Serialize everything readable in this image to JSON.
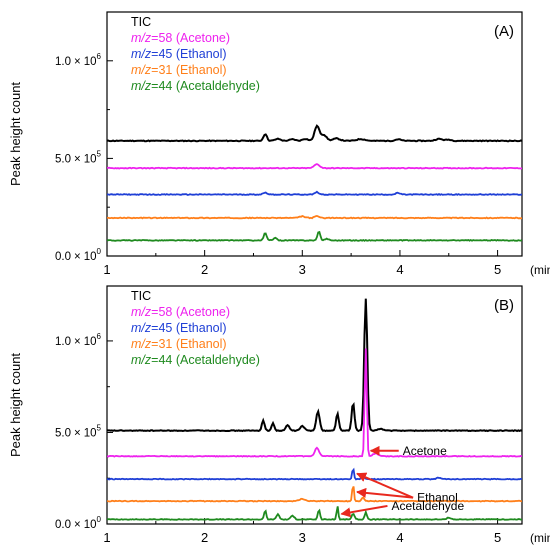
{
  "colors": {
    "TIC": "#000000",
    "acetone": "#ee22ee",
    "ethanol45": "#1f3fd6",
    "ethanol31": "#ff7f1a",
    "acetaldehyde": "#1f8a1f",
    "arrow": "#e8281e"
  },
  "chart_data": [
    {
      "type": "line",
      "panel_label": "(A)",
      "xlabel": "(min)",
      "ylabel": "Peak height count",
      "xlim": [
        1.0,
        5.25
      ],
      "ylim": [
        0,
        1250000
      ],
      "x_ticks": [
        "1",
        "2",
        "3",
        "4",
        "5"
      ],
      "y_ticks": [
        {
          "mantissa": "0.0",
          "times": "×",
          "base": "10",
          "exp": "0",
          "value": 0
        },
        {
          "mantissa": "5.0",
          "times": "×",
          "base": "10",
          "exp": "5",
          "value": 500000
        },
        {
          "mantissa": "1.0",
          "times": "×",
          "base": "10",
          "exp": "6",
          "value": 1000000
        }
      ],
      "legend": [
        {
          "mz_prefix": "m/z",
          "label": "=58 (Acetone)",
          "color_key": "acetone"
        },
        {
          "mz_prefix": "m/z",
          "label": "=45 (Ethanol)",
          "color_key": "ethanol45"
        },
        {
          "mz_prefix": "m/z",
          "label": "=31 (Ethanol)",
          "color_key": "ethanol31"
        },
        {
          "mz_prefix": "m/z",
          "label": "=44 (Acetaldehyde)",
          "color_key": "acetaldehyde"
        }
      ],
      "legend_title": "TIC",
      "series": [
        {
          "key": "TIC",
          "color_key": "TIC",
          "baseline": 590000,
          "peaks": [
            [
              2.62,
              35000,
              0.025
            ],
            [
              2.75,
              10000,
              0.04
            ],
            [
              2.9,
              8000,
              0.04
            ],
            [
              3.03,
              10000,
              0.04
            ],
            [
              3.15,
              75000,
              0.035
            ],
            [
              3.22,
              30000,
              0.04
            ],
            [
              3.35,
              12000,
              0.05
            ],
            [
              3.6,
              9000,
              0.06
            ],
            [
              3.98,
              8000,
              0.04
            ],
            [
              4.4,
              10000,
              0.05
            ],
            [
              4.5,
              6000,
              0.04
            ]
          ]
        },
        {
          "key": "acetone",
          "color_key": "acetone",
          "baseline": 450000,
          "peaks": [
            [
              3.15,
              20000,
              0.04
            ]
          ]
        },
        {
          "key": "ethanol45",
          "color_key": "ethanol45",
          "baseline": 315000,
          "peaks": [
            [
              2.62,
              10000,
              0.03
            ],
            [
              3.15,
              12000,
              0.03
            ],
            [
              3.98,
              8000,
              0.03
            ]
          ]
        },
        {
          "key": "ethanol31",
          "color_key": "ethanol31",
          "baseline": 195000,
          "peaks": [
            [
              3.0,
              8000,
              0.04
            ],
            [
              3.15,
              10000,
              0.03
            ]
          ]
        },
        {
          "key": "acetaldehyde",
          "color_key": "acetaldehyde",
          "baseline": 80000,
          "peaks": [
            [
              2.62,
              38000,
              0.02
            ],
            [
              2.72,
              12000,
              0.025
            ],
            [
              3.17,
              45000,
              0.02
            ],
            [
              3.25,
              8000,
              0.03
            ]
          ]
        }
      ]
    },
    {
      "type": "line",
      "panel_label": "(B)",
      "xlabel": "(min)",
      "ylabel": "Peak height count",
      "xlim": [
        1.0,
        5.25
      ],
      "ylim": [
        0,
        1300000
      ],
      "x_ticks": [
        "1",
        "2",
        "3",
        "4",
        "5"
      ],
      "y_ticks": [
        {
          "mantissa": "0.0",
          "times": "×",
          "base": "10",
          "exp": "0",
          "value": 0
        },
        {
          "mantissa": "5.0",
          "times": "×",
          "base": "10",
          "exp": "5",
          "value": 500000
        },
        {
          "mantissa": "1.0",
          "times": "×",
          "base": "10",
          "exp": "6",
          "value": 1000000
        }
      ],
      "legend": [
        {
          "mz_prefix": "m/z",
          "label": "=58 (Acetone)",
          "color_key": "acetone"
        },
        {
          "mz_prefix": "m/z",
          "label": "=45 (Ethanol)",
          "color_key": "ethanol45"
        },
        {
          "mz_prefix": "m/z",
          "label": "=31 (Ethanol)",
          "color_key": "ethanol31"
        },
        {
          "mz_prefix": "m/z",
          "label": "=44 (Acetaldehyde)",
          "color_key": "acetaldehyde"
        }
      ],
      "legend_title": "TIC",
      "annotations": [
        {
          "text": "Acetone",
          "target_series": "acetone",
          "x": 3.66
        },
        {
          "text": "Ethanol",
          "target_series": "ethanol45",
          "x": 3.52
        },
        {
          "text": "Acetaldehyde",
          "target_series": "acetaldehyde",
          "x": 3.36
        }
      ],
      "series": [
        {
          "key": "TIC",
          "color_key": "TIC",
          "baseline": 510000,
          "peaks": [
            [
              2.6,
              55000,
              0.02
            ],
            [
              2.7,
              40000,
              0.02
            ],
            [
              2.85,
              30000,
              0.025
            ],
            [
              3.0,
              25000,
              0.03
            ],
            [
              3.16,
              105000,
              0.025
            ],
            [
              3.36,
              95000,
              0.02
            ],
            [
              3.52,
              150000,
              0.02
            ],
            [
              3.65,
              720000,
              0.022
            ],
            [
              3.8,
              10000,
              0.04
            ]
          ]
        },
        {
          "key": "acetone",
          "color_key": "acetone",
          "baseline": 370000,
          "peaks": [
            [
              3.15,
              45000,
              0.03
            ],
            [
              3.65,
              590000,
              0.015
            ],
            [
              3.75,
              15000,
              0.04
            ]
          ]
        },
        {
          "key": "ethanol45",
          "color_key": "ethanol45",
          "baseline": 245000,
          "peaks": [
            [
              3.52,
              60000,
              0.012
            ],
            [
              3.62,
              15000,
              0.02
            ],
            [
              4.4,
              8000,
              0.03
            ]
          ]
        },
        {
          "key": "ethanol31",
          "color_key": "ethanol31",
          "baseline": 125000,
          "peaks": [
            [
              3.0,
              12000,
              0.04
            ],
            [
              3.52,
              95000,
              0.012
            ],
            [
              3.62,
              20000,
              0.02
            ]
          ]
        },
        {
          "key": "acetaldehyde",
          "color_key": "acetaldehyde",
          "baseline": 25000,
          "peaks": [
            [
              2.62,
              50000,
              0.015
            ],
            [
              2.75,
              30000,
              0.02
            ],
            [
              2.9,
              20000,
              0.025
            ],
            [
              3.17,
              55000,
              0.015
            ],
            [
              3.36,
              75000,
              0.012
            ],
            [
              3.52,
              30000,
              0.02
            ],
            [
              3.65,
              40000,
              0.015
            ],
            [
              4.5,
              10000,
              0.03
            ]
          ]
        }
      ]
    }
  ]
}
